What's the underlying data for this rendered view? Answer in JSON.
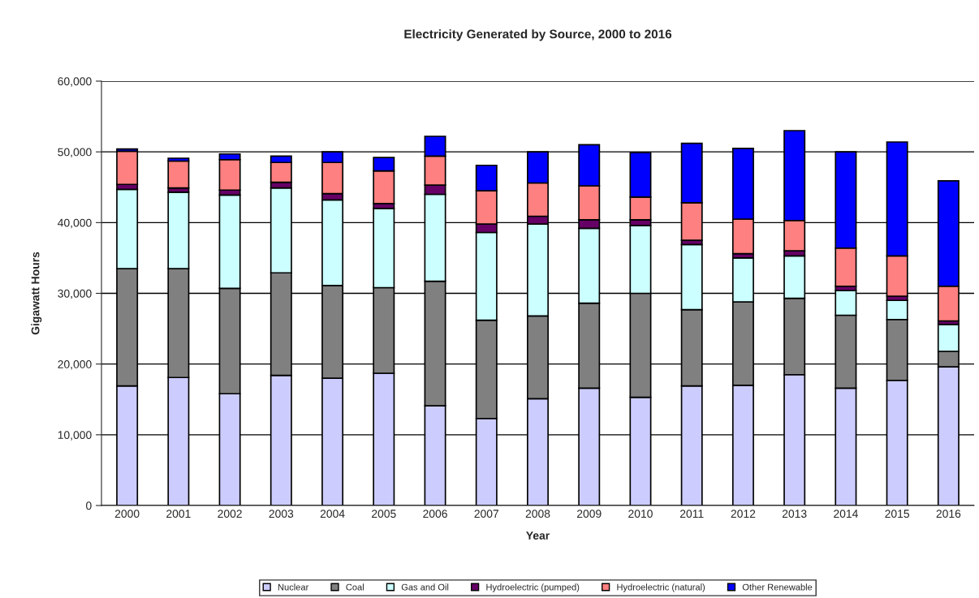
{
  "chart_data": {
    "type": "bar",
    "title": "Electricity Generated by Source, 2000 to 2016",
    "xlabel": "Year",
    "ylabel": "Gigawatt Hours",
    "categories": [
      "2000",
      "2001",
      "2002",
      "2003",
      "2004",
      "2005",
      "2006",
      "2007",
      "2008",
      "2009",
      "2010",
      "2011",
      "2012",
      "2013",
      "2014",
      "2015",
      "2016"
    ],
    "stacked": true,
    "ylim": [
      0,
      60000
    ],
    "yticks": [
      {
        "value": 0,
        "label": "0"
      },
      {
        "value": 10000,
        "label": "10,000"
      },
      {
        "value": 20000,
        "label": "20,000"
      },
      {
        "value": 30000,
        "label": "30,000"
      },
      {
        "value": 40000,
        "label": "40,000"
      },
      {
        "value": 50000,
        "label": "50,000"
      },
      {
        "value": 60000,
        "label": "60,000"
      }
    ],
    "grid": "y",
    "legend": "bottom",
    "series": [
      {
        "name": "Nuclear",
        "color": "#ccccff",
        "values": [
          16900,
          18100,
          15800,
          18400,
          18000,
          18700,
          14100,
          12300,
          15100,
          16600,
          15300,
          16900,
          17000,
          18500,
          16600,
          17700,
          19600
        ]
      },
      {
        "name": "Coal",
        "color": "#808080",
        "values": [
          16600,
          15400,
          14900,
          14500,
          13100,
          12100,
          17600,
          13900,
          11700,
          12000,
          14700,
          10800,
          11800,
          10800,
          10300,
          8600,
          2200
        ]
      },
      {
        "name": "Gas and Oil",
        "color": "#ccffff",
        "values": [
          11200,
          10800,
          13200,
          12000,
          12100,
          11200,
          12300,
          12400,
          13000,
          10600,
          9600,
          9200,
          6200,
          6000,
          3500,
          2700,
          3800
        ]
      },
      {
        "name": "Hydroelectric (pumped)",
        "color": "#660066",
        "values": [
          700,
          600,
          700,
          800,
          900,
          700,
          1300,
          1200,
          1100,
          1200,
          800,
          600,
          600,
          700,
          600,
          600,
          500
        ]
      },
      {
        "name": "Hydroelectric (natural)",
        "color": "#ff8080",
        "values": [
          4700,
          3800,
          4300,
          2800,
          4400,
          4600,
          4100,
          4700,
          4700,
          4800,
          3200,
          5300,
          4900,
          4300,
          5400,
          5700,
          4900
        ]
      },
      {
        "name": "Other Renewable",
        "color": "#0000ff",
        "values": [
          300,
          400,
          800,
          900,
          1500,
          1900,
          2800,
          3600,
          4400,
          5800,
          6300,
          8400,
          10000,
          12700,
          13600,
          16100,
          14900
        ]
      }
    ]
  }
}
